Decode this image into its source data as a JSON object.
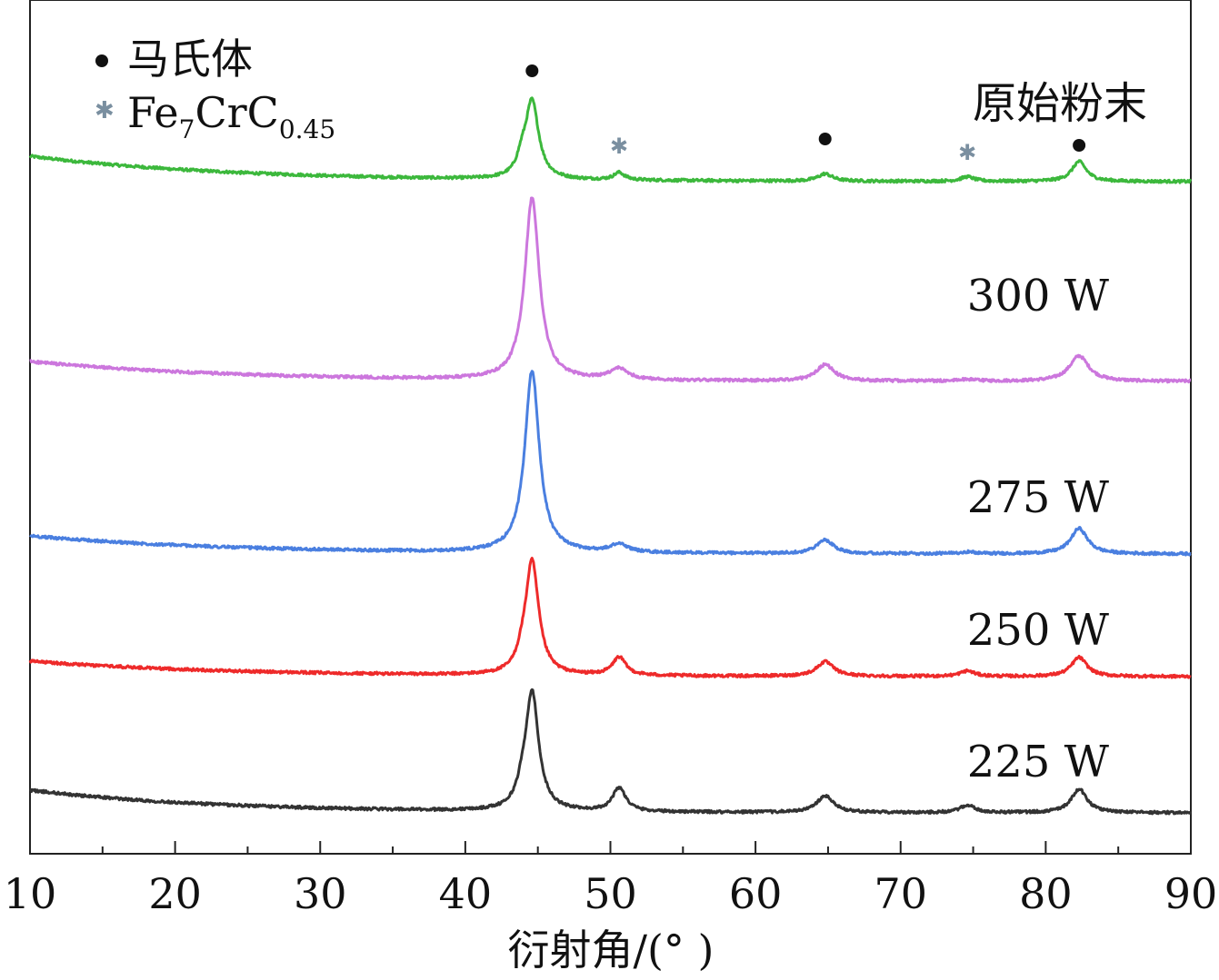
{
  "chart_data": {
    "type": "line",
    "title": "",
    "xlabel": "衍射角/(°  )",
    "ylabel": "",
    "xlim": [
      10,
      90
    ],
    "x_ticks": [
      10,
      20,
      30,
      40,
      50,
      60,
      70,
      80,
      90
    ],
    "x_tick_labels": [
      "10",
      "20",
      "30",
      "40",
      "50",
      "60",
      "70",
      "80",
      "90"
    ],
    "y_axis": "arbitrary units, stacked patterns, no tick labels",
    "grid": false,
    "legend": {
      "placement": "top-left",
      "entries": [
        {
          "marker": "dot",
          "label": "马氏体",
          "color": "#111111"
        },
        {
          "marker": "star",
          "label_main": "Fe",
          "label_sub1": "7",
          "label_mid": "CrC",
          "label_sub2": "0.45",
          "color": "#7a8fa0"
        }
      ]
    },
    "phase_markers": [
      {
        "phase": "马氏体",
        "marker": "dot",
        "x": 44.6
      },
      {
        "phase": "Fe7CrC0.45",
        "marker": "star",
        "x": 50.6
      },
      {
        "phase": "马氏体",
        "marker": "dot",
        "x": 64.8
      },
      {
        "phase": "Fe7CrC0.45",
        "marker": "star",
        "x": 74.6
      },
      {
        "phase": "马氏体",
        "marker": "dot",
        "x": 82.3
      }
    ],
    "series": [
      {
        "name": "原始粉末",
        "color": "#3cb83c",
        "baseline_offset": 6.95,
        "background_start": 0.28,
        "background_decay": 14,
        "peaks": [
          {
            "x": 44.6,
            "height": 0.85,
            "width": 0.55
          },
          {
            "x": 43.9,
            "height": 0.15,
            "width": 0.4
          },
          {
            "x": 50.6,
            "height": 0.08,
            "width": 0.45
          },
          {
            "x": 64.8,
            "height": 0.08,
            "width": 0.6
          },
          {
            "x": 74.6,
            "height": 0.05,
            "width": 0.55
          },
          {
            "x": 82.3,
            "height": 0.22,
            "width": 0.6
          }
        ]
      },
      {
        "name": "300 W",
        "color": "#cc77dd",
        "baseline_offset": 4.75,
        "background_start": 0.22,
        "background_decay": 14,
        "peaks": [
          {
            "x": 44.6,
            "height": 2.0,
            "width": 0.6
          },
          {
            "x": 50.6,
            "height": 0.12,
            "width": 0.75
          },
          {
            "x": 64.8,
            "height": 0.18,
            "width": 0.75
          },
          {
            "x": 74.6,
            "height": 0.02,
            "width": 0.6
          },
          {
            "x": 82.3,
            "height": 0.28,
            "width": 0.8
          }
        ]
      },
      {
        "name": "275 W",
        "color": "#4a7fe0",
        "baseline_offset": 2.85,
        "background_start": 0.2,
        "background_decay": 14,
        "peaks": [
          {
            "x": 44.6,
            "height": 2.0,
            "width": 0.6
          },
          {
            "x": 50.6,
            "height": 0.09,
            "width": 0.7
          },
          {
            "x": 64.8,
            "height": 0.15,
            "width": 0.7
          },
          {
            "x": 74.6,
            "height": 0.02,
            "width": 0.6
          },
          {
            "x": 82.3,
            "height": 0.28,
            "width": 0.7
          }
        ]
      },
      {
        "name": "250 W",
        "color": "#ee2a2a",
        "baseline_offset": 1.5,
        "background_start": 0.17,
        "background_decay": 14,
        "peaks": [
          {
            "x": 44.6,
            "height": 1.25,
            "width": 0.55
          },
          {
            "x": 43.9,
            "height": 0.1,
            "width": 0.4
          },
          {
            "x": 50.6,
            "height": 0.2,
            "width": 0.55
          },
          {
            "x": 64.8,
            "height": 0.16,
            "width": 0.7
          },
          {
            "x": 74.6,
            "height": 0.06,
            "width": 0.6
          },
          {
            "x": 82.3,
            "height": 0.21,
            "width": 0.65
          }
        ]
      },
      {
        "name": "225 W",
        "color": "#333333",
        "baseline_offset": 0.0,
        "background_start": 0.25,
        "background_decay": 13,
        "peaks": [
          {
            "x": 44.6,
            "height": 1.3,
            "width": 0.55
          },
          {
            "x": 43.9,
            "height": 0.12,
            "width": 0.45
          },
          {
            "x": 50.6,
            "height": 0.26,
            "width": 0.55
          },
          {
            "x": 64.8,
            "height": 0.18,
            "width": 0.7
          },
          {
            "x": 74.6,
            "height": 0.08,
            "width": 0.6
          },
          {
            "x": 82.3,
            "height": 0.26,
            "width": 0.65
          }
        ]
      }
    ]
  }
}
